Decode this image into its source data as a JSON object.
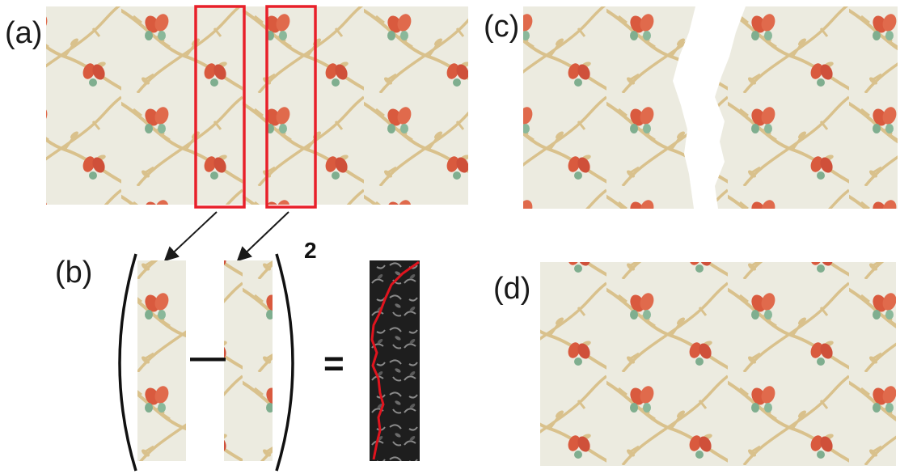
{
  "panels": {
    "a": {
      "label": "(a)"
    },
    "b": {
      "label": "(b)"
    },
    "c": {
      "label": "(c)"
    },
    "d": {
      "label": "(d)"
    }
  },
  "equation": {
    "minus": "—",
    "equals": "=",
    "exponent": "2"
  },
  "colors": {
    "fabric": "#ecebe0",
    "vine": "#d9c18c",
    "flower": "#d95a3e",
    "leaf": "#7fae8f",
    "highlight_box": "#e8202a",
    "arrow": "#1a1a1a",
    "error_map_bg": "#1e1e1e",
    "seam": "#e0141e"
  }
}
